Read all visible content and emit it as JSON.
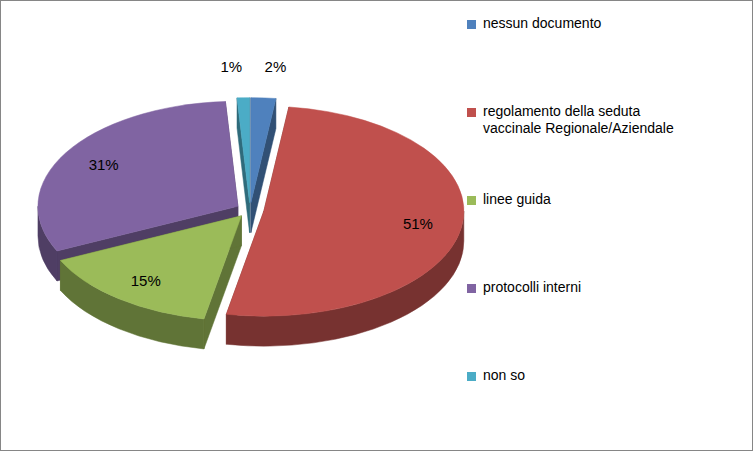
{
  "chart_data": {
    "type": "pie",
    "categories": [
      "nessun documento",
      "regolamento della seduta vaccinale Regionale/Aziendale",
      "linee guida",
      "protocolli interni",
      "non so"
    ],
    "values": [
      2,
      51,
      15,
      31,
      1
    ],
    "value_labels": [
      "2%",
      "51%",
      "15%",
      "31%",
      "1%"
    ],
    "colors": [
      "#4f81bd",
      "#c0504d",
      "#9bbb59",
      "#8064a2",
      "#4bacc6"
    ],
    "data_labels": true,
    "legend": "right"
  }
}
